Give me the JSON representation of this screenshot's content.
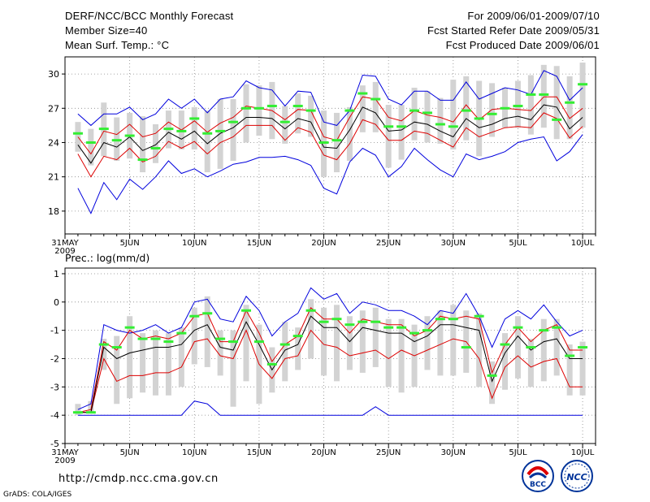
{
  "header": {
    "title": "DERF/NCC/BCC Monthly Forecast",
    "member_size": "Member Size=40",
    "variable1": "Mean Surf. Temp.: °C",
    "period": "For 2009/06/01-2009/07/10",
    "started": "Fcst Started Refer Date 2009/05/31",
    "produced": "Fcst Produced Date 2009/06/01"
  },
  "footer": {
    "url": "http://cmdp.ncc.cma.gov.cn",
    "credit": "GrADS: COLA/IGES",
    "logo_bcc": "BCC",
    "logo_ncc": "NCC"
  },
  "colors": {
    "max_min": "#0000dd",
    "spread": "#dd0000",
    "mean": "#000000",
    "median": "#33ee33",
    "box": "#d3d3d3",
    "grid": "#888888"
  },
  "x_ticks": [
    "31MAY",
    "5JUN",
    "10JUN",
    "15JUN",
    "20JUN",
    "25JUN",
    "30JUN",
    "5JUL",
    "10JUL"
  ],
  "x_tick_days": [
    0,
    5,
    10,
    15,
    20,
    25,
    30,
    35,
    40
  ],
  "x_year": "2009",
  "chart_data": [
    {
      "type": "line",
      "title": "Mean Surf. Temp.: °C",
      "xlabel": "",
      "ylabel": "",
      "ylim": [
        16,
        31.5
      ],
      "yticks": [
        18,
        21,
        24,
        27,
        30
      ],
      "ytick_labels": [
        "18",
        "21",
        "24",
        "27",
        "30"
      ],
      "x": [
        1,
        2,
        3,
        4,
        5,
        6,
        7,
        8,
        9,
        10,
        11,
        12,
        13,
        14,
        15,
        16,
        17,
        18,
        19,
        20,
        21,
        22,
        23,
        24,
        25,
        26,
        27,
        28,
        29,
        30,
        31,
        32,
        33,
        34,
        35,
        36,
        37,
        38,
        39,
        40
      ],
      "series": [
        {
          "name": "max",
          "values": [
            26.5,
            25.5,
            26.5,
            26.5,
            27.1,
            26.0,
            26.5,
            27.8,
            27.0,
            27.8,
            26.6,
            27.8,
            28.0,
            29.4,
            28.8,
            28.6,
            27.2,
            28.5,
            28.4,
            25.8,
            25.5,
            26.8,
            29.9,
            29.8,
            27.8,
            27.3,
            28.5,
            28.5,
            27.7,
            27.7,
            29.3,
            27.8,
            28.3,
            28.8,
            28.6,
            28.2,
            30.3,
            29.8,
            27.7,
            28.8
          ]
        },
        {
          "name": "spread_upper",
          "values": [
            24.5,
            23.0,
            25.0,
            24.7,
            25.6,
            24.5,
            24.8,
            25.8,
            25.1,
            25.9,
            24.9,
            25.7,
            26.2,
            27.2,
            27.0,
            26.8,
            26.0,
            26.9,
            26.8,
            24.5,
            24.2,
            26.2,
            28.0,
            27.8,
            26.2,
            25.9,
            26.8,
            26.4,
            26.2,
            25.8,
            27.3,
            26.0,
            26.9,
            27.0,
            26.9,
            26.8,
            28.0,
            28.0,
            26.1,
            27.0
          ]
        },
        {
          "name": "mean",
          "values": [
            23.8,
            22.2,
            24.0,
            23.6,
            24.5,
            23.3,
            23.8,
            24.9,
            24.3,
            25.0,
            23.9,
            24.8,
            25.3,
            26.2,
            26.2,
            26.1,
            25.2,
            26.1,
            25.8,
            23.6,
            23.5,
            25.1,
            27.1,
            26.6,
            25.0,
            25.1,
            25.8,
            25.6,
            25.0,
            24.5,
            26.1,
            25.3,
            25.6,
            26.1,
            26.3,
            26.0,
            27.3,
            27.1,
            25.2,
            26.2
          ]
        },
        {
          "name": "spread_lower",
          "values": [
            23.0,
            21.0,
            22.8,
            22.5,
            23.5,
            22.3,
            22.8,
            24.1,
            23.5,
            24.1,
            23.0,
            24.0,
            24.5,
            25.5,
            25.5,
            25.5,
            24.2,
            25.3,
            24.9,
            22.9,
            22.5,
            23.9,
            26.0,
            25.6,
            24.2,
            24.2,
            25.0,
            24.8,
            24.2,
            23.6,
            25.3,
            24.5,
            24.9,
            25.3,
            25.4,
            25.3,
            26.6,
            26.1,
            24.4,
            25.4
          ]
        },
        {
          "name": "min",
          "values": [
            20.0,
            17.8,
            20.5,
            19.0,
            20.8,
            19.9,
            21.0,
            22.4,
            21.3,
            21.7,
            21.0,
            21.5,
            22.1,
            22.3,
            22.7,
            22.7,
            22.8,
            22.5,
            22.0,
            20.0,
            19.5,
            22.3,
            23.5,
            22.9,
            21.0,
            21.9,
            23.5,
            22.5,
            21.6,
            21.0,
            23.0,
            22.5,
            22.8,
            23.2,
            24.0,
            24.3,
            24.5,
            22.4,
            23.2,
            24.7
          ]
        },
        {
          "name": "median",
          "values": [
            24.8,
            24.0,
            25.2,
            24.2,
            24.6,
            22.5,
            23.5,
            25.2,
            25.0,
            26.1,
            24.8,
            25.0,
            25.8,
            27.0,
            27.0,
            27.2,
            25.8,
            27.2,
            26.8,
            24.0,
            24.2,
            26.8,
            28.3,
            27.8,
            25.4,
            25.4,
            26.8,
            26.6,
            25.6,
            25.4,
            26.8,
            26.1,
            26.5,
            27.0,
            27.2,
            28.2,
            28.2,
            26.0,
            27.5,
            29.1
          ]
        },
        {
          "name": "box_top",
          "values": [
            25.8,
            25.2,
            27.5,
            26.2,
            26.6,
            26.3,
            25.6,
            26.8,
            26.8,
            27.1,
            26.8,
            27.8,
            27.8,
            29.1,
            29.0,
            29.3,
            27.2,
            28.3,
            28.1,
            26.8,
            26.6,
            27.1,
            29.0,
            29.3,
            27.3,
            27.3,
            28.8,
            28.5,
            27.9,
            29.5,
            29.8,
            29.4,
            29.2,
            28.8,
            29.4,
            29.9,
            30.8,
            30.7,
            29.8,
            31.0
          ]
        },
        {
          "name": "box_bottom",
          "values": [
            23.2,
            22.0,
            22.8,
            22.4,
            22.6,
            21.4,
            22.2,
            23.5,
            23.4,
            23.4,
            21.4,
            21.7,
            22.4,
            24.0,
            24.6,
            24.3,
            23.9,
            24.8,
            24.5,
            21.0,
            21.4,
            22.4,
            24.9,
            24.9,
            21.8,
            22.5,
            24.2,
            24.0,
            23.9,
            23.4,
            24.2,
            22.8,
            24.5,
            25.3,
            25.3,
            24.7,
            25.3,
            24.3,
            24.3,
            25.3
          ]
        }
      ]
    },
    {
      "type": "line",
      "title": "Prec.: log(mm/d)",
      "xlabel": "",
      "ylabel": "",
      "ylim": [
        -5,
        1.2
      ],
      "yticks": [
        -5,
        -4,
        -3,
        -2,
        -1,
        0,
        1
      ],
      "ytick_labels": [
        "-5",
        "-4",
        "-3",
        "-2",
        "-1",
        "0",
        "1"
      ],
      "x": [
        1,
        2,
        3,
        4,
        5,
        6,
        7,
        8,
        9,
        10,
        11,
        12,
        13,
        14,
        15,
        16,
        17,
        18,
        19,
        20,
        21,
        22,
        23,
        24,
        25,
        26,
        27,
        28,
        29,
        30,
        31,
        32,
        33,
        34,
        35,
        36,
        37,
        38,
        39,
        40
      ],
      "series": [
        {
          "name": "max",
          "values": [
            -3.8,
            -3.6,
            -0.8,
            -1.0,
            -1.1,
            -1.0,
            -0.8,
            -1.1,
            -0.9,
            0.0,
            0.1,
            -0.6,
            -0.7,
            0.2,
            -0.3,
            -1.2,
            -0.7,
            -0.4,
            0.5,
            0.1,
            0.3,
            -0.4,
            0.0,
            -0.1,
            -0.3,
            -0.3,
            -0.5,
            -0.8,
            -0.3,
            -0.4,
            0.3,
            -0.5,
            -1.6,
            -0.6,
            -0.3,
            -0.6,
            -0.1,
            -0.7,
            -1.2,
            -1.0
          ]
        },
        {
          "name": "spread_upper",
          "values": [
            -3.9,
            -3.8,
            -1.4,
            -1.7,
            -1.0,
            -1.3,
            -1.2,
            -1.3,
            -1.1,
            -0.5,
            -0.4,
            -1.4,
            -1.4,
            -0.3,
            -1.1,
            -2.1,
            -1.5,
            -1.2,
            -0.2,
            -0.6,
            -0.6,
            -1.1,
            -0.6,
            -0.7,
            -0.8,
            -0.8,
            -1.2,
            -1.0,
            -0.5,
            -0.6,
            -0.5,
            -0.6,
            -2.5,
            -1.5,
            -0.9,
            -1.4,
            -1.0,
            -0.8,
            -1.7,
            -1.7
          ]
        },
        {
          "name": "mean",
          "values": [
            -3.9,
            -3.9,
            -1.6,
            -2.0,
            -1.8,
            -1.7,
            -1.6,
            -1.6,
            -1.5,
            -1.0,
            -0.8,
            -1.6,
            -1.7,
            -0.7,
            -1.5,
            -2.4,
            -1.7,
            -1.5,
            -0.5,
            -0.9,
            -0.9,
            -1.4,
            -0.9,
            -1.0,
            -1.1,
            -1.1,
            -1.4,
            -1.2,
            -0.8,
            -0.8,
            -0.9,
            -1.0,
            -2.8,
            -1.8,
            -1.2,
            -1.7,
            -1.4,
            -1.3,
            -2.0,
            -2.0
          ]
        },
        {
          "name": "spread_lower",
          "values": [
            -3.9,
            -3.9,
            -2.0,
            -2.8,
            -2.6,
            -2.6,
            -2.5,
            -2.5,
            -2.3,
            -1.4,
            -1.3,
            -1.9,
            -2.0,
            -1.0,
            -2.2,
            -2.7,
            -2.0,
            -1.9,
            -1.0,
            -1.5,
            -1.6,
            -1.9,
            -1.8,
            -1.7,
            -2.0,
            -1.7,
            -1.9,
            -1.7,
            -1.5,
            -1.3,
            -1.4,
            -2.0,
            -3.4,
            -2.3,
            -1.9,
            -2.3,
            -2.1,
            -2.0,
            -3.0,
            -3.0
          ]
        },
        {
          "name": "min",
          "values": [
            -4.0,
            -4.0,
            -4.0,
            -4.0,
            -4.0,
            -4.0,
            -4.0,
            -4.0,
            -4.0,
            -3.5,
            -3.6,
            -4.0,
            -4.0,
            -4.0,
            -4.0,
            -4.0,
            -4.0,
            -4.0,
            -4.0,
            -4.0,
            -4.0,
            -4.0,
            -4.0,
            -3.7,
            -4.0,
            -4.0,
            -4.0,
            -4.0,
            -4.0,
            -4.0,
            -4.0,
            -4.0,
            -4.0,
            -4.0,
            -4.0,
            -4.0,
            -4.0,
            -4.0,
            -4.0,
            -4.0
          ]
        },
        {
          "name": "median",
          "values": [
            -3.9,
            -3.9,
            -1.5,
            -1.6,
            -0.9,
            -1.3,
            -1.3,
            -1.4,
            -1.1,
            -0.5,
            -0.4,
            -1.3,
            -1.4,
            -0.3,
            -1.4,
            -2.2,
            -1.5,
            -1.2,
            -0.3,
            -0.7,
            -0.6,
            -0.8,
            -0.7,
            -0.7,
            -0.9,
            -0.9,
            -1.1,
            -1.0,
            -0.6,
            -0.6,
            -1.6,
            -0.5,
            -2.6,
            -1.5,
            -0.9,
            -1.6,
            -1.0,
            -0.9,
            -1.9,
            -1.6
          ]
        },
        {
          "name": "box_top",
          "values": [
            -3.6,
            -3.5,
            -1.3,
            -1.2,
            -0.5,
            -1.1,
            -1.0,
            -1.1,
            -0.9,
            -0.2,
            0.2,
            -1.0,
            -1.0,
            -0.1,
            -0.8,
            -1.6,
            -0.7,
            -0.9,
            0.1,
            -0.2,
            -0.1,
            -0.5,
            -0.3,
            -0.2,
            -0.6,
            -0.6,
            -0.8,
            -0.5,
            -0.3,
            -0.1,
            -0.3,
            -0.4,
            -2.1,
            -1.1,
            -0.5,
            -1.3,
            -0.6,
            -0.6,
            -1.5,
            -1.4
          ]
        },
        {
          "name": "box_bottom",
          "values": [
            -4.0,
            -3.9,
            -2.4,
            -3.6,
            -3.4,
            -3.2,
            -3.3,
            -3.3,
            -3.0,
            -2.2,
            -2.3,
            -2.6,
            -3.7,
            -2.8,
            -3.6,
            -3.2,
            -2.8,
            -2.4,
            -2.0,
            -2.6,
            -2.8,
            -2.4,
            -2.5,
            -2.3,
            -3.0,
            -3.2,
            -3.0,
            -2.4,
            -2.6,
            -2.6,
            -2.5,
            -3.0,
            -3.6,
            -3.1,
            -2.7,
            -3.0,
            -2.8,
            -2.6,
            -3.3,
            -3.3
          ]
        }
      ]
    }
  ]
}
